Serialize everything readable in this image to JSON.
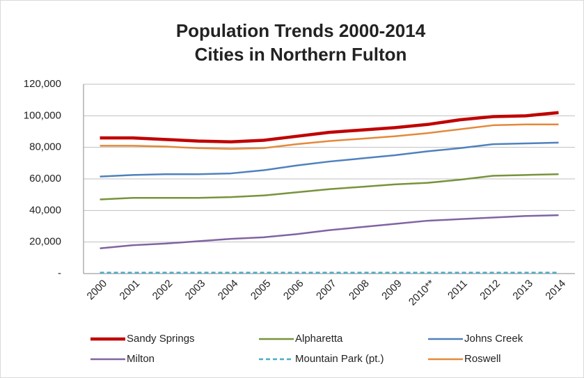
{
  "chart_data": {
    "type": "line",
    "title": "Population Trends 2000-2014",
    "subtitle": "Cities in Northern Fulton",
    "categories": [
      "2000",
      "2001",
      "2002",
      "2003",
      "2004",
      "2005",
      "2006",
      "2007",
      "2008",
      "2009",
      "2010**",
      "2011",
      "2012",
      "2013",
      "2014"
    ],
    "series": [
      {
        "name": "Sandy Springs",
        "color": "#c00000",
        "line_width": 4.5,
        "values": [
          86000,
          86000,
          85000,
          84000,
          83500,
          84500,
          87000,
          89500,
          91000,
          92500,
          94500,
          97500,
          99500,
          100000,
          102000
        ]
      },
      {
        "name": "Alpharetta",
        "color": "#77933c",
        "line_width": 2.5,
        "values": [
          47000,
          48000,
          48000,
          48000,
          48500,
          49500,
          51500,
          53500,
          55000,
          56500,
          57500,
          59500,
          62000,
          62500,
          63000
        ]
      },
      {
        "name": "Johns Creek",
        "color": "#4f81bd",
        "line_width": 2.5,
        "values": [
          61500,
          62500,
          63000,
          63000,
          63500,
          65500,
          68500,
          71000,
          73000,
          75000,
          77500,
          79500,
          82000,
          82500,
          83000
        ]
      },
      {
        "name": "Milton",
        "color": "#8064a2",
        "line_width": 2.5,
        "values": [
          16000,
          18000,
          19000,
          20500,
          22000,
          23000,
          25000,
          27500,
          29500,
          31500,
          33500,
          34500,
          35500,
          36500,
          37000
        ]
      },
      {
        "name": "Mountain Park (pt.)",
        "color": "#4bacc6",
        "line_width": 2.5,
        "dashed": true,
        "values": [
          600,
          600,
          600,
          600,
          600,
          600,
          600,
          600,
          600,
          600,
          600,
          600,
          600,
          600,
          600
        ]
      },
      {
        "name": "Roswell",
        "color": "#e4893a",
        "line_width": 2.5,
        "values": [
          81000,
          81000,
          80500,
          79500,
          79000,
          79500,
          82000,
          84000,
          85500,
          87000,
          89000,
          91500,
          94000,
          94500,
          94500
        ]
      }
    ],
    "ylim": [
      0,
      120000
    ],
    "yticks": [
      {
        "value": 0,
        "label": "-"
      },
      {
        "value": 20000,
        "label": "20,000"
      },
      {
        "value": 40000,
        "label": "40,000"
      },
      {
        "value": 60000,
        "label": "60,000"
      },
      {
        "value": 80000,
        "label": "80,000"
      },
      {
        "value": 100000,
        "label": "100,000"
      },
      {
        "value": 120000,
        "label": "120,000"
      }
    ],
    "grid": true,
    "legend": "bottom"
  }
}
